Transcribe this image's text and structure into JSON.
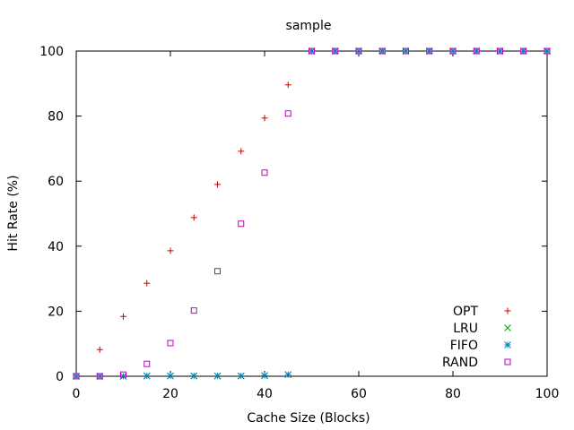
{
  "chart_data": {
    "type": "scatter",
    "title": "sample",
    "xlabel": "Cache Size (Blocks)",
    "ylabel": "Hit Rate (%)",
    "xlim": [
      0,
      100
    ],
    "ylim": [
      0,
      100
    ],
    "xticks": [
      0,
      20,
      40,
      60,
      80,
      100
    ],
    "yticks": [
      0,
      20,
      40,
      60,
      80,
      100
    ],
    "grid": false,
    "legend_position": "bottom-right",
    "x": [
      0,
      5,
      10,
      15,
      20,
      25,
      30,
      35,
      40,
      45,
      50,
      55,
      60,
      65,
      70,
      75,
      80,
      85,
      90,
      95,
      100
    ],
    "series": [
      {
        "name": "OPT",
        "marker": "plus",
        "color": "#cc0000",
        "values": [
          0,
          8.2,
          18.4,
          28.6,
          38.6,
          48.8,
          59.0,
          69.2,
          79.4,
          89.6,
          100,
          100,
          100,
          100,
          100,
          100,
          100,
          100,
          100,
          100,
          100
        ]
      },
      {
        "name": "LRU",
        "marker": "cross",
        "color": "#00a000",
        "values": [
          0,
          0,
          0,
          0.1,
          0.1,
          0.1,
          0.1,
          0.1,
          0.2,
          0.5,
          100,
          100,
          100,
          100,
          100,
          100,
          100,
          100,
          100,
          100,
          100
        ]
      },
      {
        "name": "FIFO",
        "marker": "star",
        "color": "#0080c0",
        "values": [
          0,
          0,
          0,
          0.1,
          0.1,
          0.1,
          0.1,
          0.1,
          0.2,
          0.5,
          100,
          100,
          100,
          100,
          100,
          100,
          100,
          100,
          100,
          100,
          100
        ]
      },
      {
        "name": "RAND",
        "marker": "square",
        "color": "#c000c0",
        "values": [
          0,
          0,
          0.5,
          3.8,
          10.2,
          20.2,
          32.3,
          46.9,
          62.6,
          80.8,
          100,
          100,
          100,
          100,
          100,
          100,
          100,
          100,
          100,
          100,
          100
        ]
      }
    ]
  }
}
